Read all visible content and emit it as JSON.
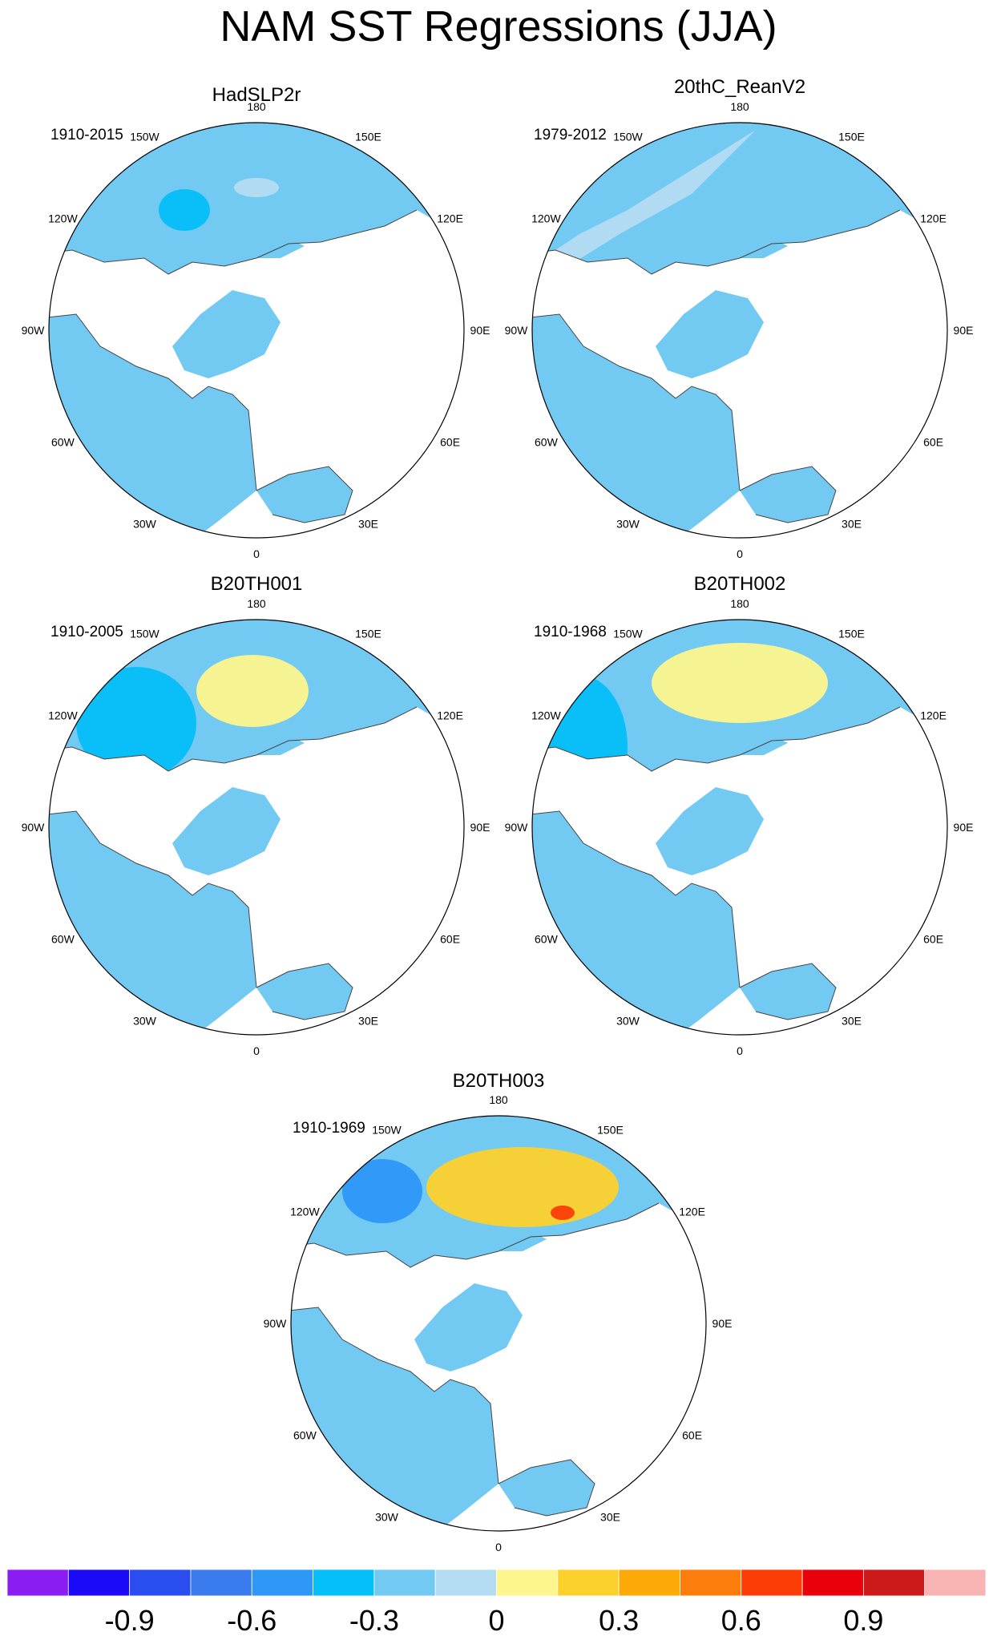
{
  "title": "NAM SST Regressions (JJA)",
  "colors": {
    "land": "#ffffff",
    "coast": "#444444",
    "border": "#000000",
    "neutral_neg": "#b3dcf2",
    "neutral_pos": "#fdf58d"
  },
  "lon_labels": [
    "180",
    "150E",
    "120E",
    "90E",
    "60E",
    "30E",
    "0",
    "30W",
    "60W",
    "90W",
    "120W",
    "150W"
  ],
  "panels": [
    {
      "title": "HadSLP2r",
      "period": "1910-2015",
      "base_class": 6,
      "anomalies": [
        {
          "region": "n-atlantic",
          "class": 7
        },
        {
          "region": "w-atlantic",
          "class": 5
        },
        {
          "region": "s-atlantic",
          "class": 5
        },
        {
          "region": "n-pacific-w",
          "class": 5
        },
        {
          "region": "n-pacific-e",
          "class": 7
        },
        {
          "region": "arctic-atl",
          "class": 4
        }
      ]
    },
    {
      "title": "20thC_ReanV2",
      "period": "1979-2012",
      "base_class": 6,
      "anomalies": [
        {
          "region": "n-atlantic",
          "class": 8
        },
        {
          "region": "w-atlantic",
          "class": 5
        },
        {
          "region": "s-atlantic",
          "class": 5
        },
        {
          "region": "pacific-band",
          "class": 7
        },
        {
          "region": "arctic-atl",
          "class": 4
        },
        {
          "region": "kara",
          "class": 8
        }
      ]
    },
    {
      "title": "B20TH001",
      "period": "1910-2005",
      "base_class": 6,
      "anomalies": [
        {
          "region": "n-pacific",
          "class": 8
        },
        {
          "region": "w-pacific",
          "class": 5
        },
        {
          "region": "n-atlantic",
          "class": 8
        },
        {
          "region": "labrador",
          "class": 5
        },
        {
          "region": "norwegian",
          "class": 8
        }
      ]
    },
    {
      "title": "B20TH002",
      "period": "1910-1968",
      "base_class": 6,
      "anomalies": [
        {
          "region": "n-pacific",
          "class": 8
        },
        {
          "region": "w-pacific",
          "class": 5
        },
        {
          "region": "n-atlantic",
          "class": 8
        },
        {
          "region": "mid-atlantic",
          "class": 7
        },
        {
          "region": "norwegian",
          "class": 7
        }
      ]
    },
    {
      "title": "B20TH003",
      "period": "1910-1969",
      "base_class": 6,
      "anomalies": [
        {
          "region": "n-pacific",
          "class": 9
        },
        {
          "region": "w-pacific",
          "class": 4
        },
        {
          "region": "n-atlantic",
          "class": 8
        },
        {
          "region": "labrador",
          "class": 5
        },
        {
          "region": "okhotsk",
          "class": 12
        }
      ]
    }
  ],
  "colorbar": {
    "colors": [
      "#8a1ef2",
      "#1a0af5",
      "#2a4df0",
      "#3a7ced",
      "#2d98f8",
      "#04bff8",
      "#72c9f2",
      "#b3dcf2",
      "#fdf58d",
      "#fdd12c",
      "#fdaa09",
      "#fc7d0b",
      "#fc3d05",
      "#e8000a",
      "#cc1a1a",
      "#f8b3b3"
    ],
    "labels": [
      "-0.9",
      "-0.6",
      "-0.3",
      "0",
      "0.3",
      "0.6",
      "0.9"
    ]
  }
}
